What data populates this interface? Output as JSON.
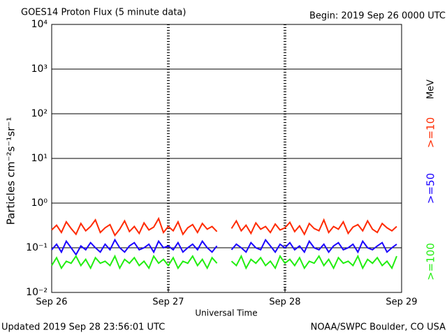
{
  "chart_data": {
    "type": "line",
    "title": "GOES14 Proton Flux (5 minute data)",
    "subtitle": "Begin: 2019 Sep 26 0000 UTC",
    "x_label": "Universal Time",
    "y_label": "Particles cm⁻²s⁻¹sr⁻¹",
    "legend_unit": "MeV",
    "footer_left": "Updated 2019 Sep 28 23:56:01 UTC",
    "footer_right": "NOAA/SWPC Boulder, CO USA",
    "ylog": true,
    "grid": true,
    "xlim": [
      0,
      72
    ],
    "xticks": [
      {
        "value": 0,
        "label": "Sep 26"
      },
      {
        "value": 24,
        "label": "Sep 27"
      },
      {
        "value": 48,
        "label": "Sep 28"
      },
      {
        "value": 72,
        "label": "Sep 29"
      }
    ],
    "ylim": [
      0.01,
      10000
    ],
    "yticks": [
      {
        "value": 0.01,
        "label": "10⁻²"
      },
      {
        "value": 0.1,
        "label": "10⁻¹"
      },
      {
        "value": 1,
        "label": "10⁰"
      },
      {
        "value": 10,
        "label": "10¹"
      },
      {
        "value": 100,
        "label": "10²"
      },
      {
        "value": 1000,
        "label": "10³"
      },
      {
        "value": 10000,
        "label": "10⁴"
      }
    ],
    "x": [
      0,
      1,
      2,
      3,
      4,
      5,
      6,
      7,
      8,
      9,
      10,
      11,
      12,
      13,
      14,
      15,
      16,
      17,
      18,
      19,
      20,
      21,
      22,
      23,
      24,
      25,
      26,
      27,
      28,
      29,
      30,
      31,
      32,
      33,
      34,
      35,
      36,
      37,
      38,
      39,
      40,
      41,
      42,
      43,
      44,
      45,
      46,
      47,
      48,
      49,
      50,
      51,
      52,
      53,
      54,
      55,
      56,
      57,
      58,
      59,
      60,
      61,
      62,
      63,
      64,
      65,
      66,
      67,
      68,
      69,
      70,
      71
    ],
    "series": [
      {
        "name": ">=10",
        "color": "#ff2a00",
        "values": [
          0.25,
          0.32,
          0.22,
          0.38,
          0.27,
          0.2,
          0.35,
          0.24,
          0.3,
          0.42,
          0.22,
          0.28,
          0.33,
          0.19,
          0.26,
          0.4,
          0.23,
          0.3,
          0.21,
          0.36,
          0.25,
          0.29,
          0.45,
          0.22,
          0.3,
          0.24,
          0.38,
          0.2,
          0.28,
          0.33,
          0.22,
          0.35,
          0.26,
          0.3,
          0.23,
          null,
          null,
          0.27,
          0.4,
          0.24,
          0.32,
          0.21,
          0.36,
          0.26,
          0.3,
          0.22,
          0.34,
          0.25,
          0.28,
          0.37,
          0.23,
          0.31,
          0.2,
          0.35,
          0.27,
          0.24,
          0.42,
          0.22,
          0.3,
          0.26,
          0.38,
          0.21,
          0.29,
          0.33,
          0.24,
          0.4,
          0.26,
          0.22,
          0.35,
          0.28,
          0.24,
          0.3
        ]
      },
      {
        "name": ">=50",
        "color": "#1a00ff",
        "values": [
          0.09,
          0.12,
          0.08,
          0.14,
          0.1,
          0.07,
          0.11,
          0.09,
          0.13,
          0.1,
          0.08,
          0.12,
          0.09,
          0.15,
          0.1,
          0.08,
          0.11,
          0.13,
          0.09,
          0.1,
          0.12,
          0.08,
          0.14,
          0.1,
          0.11,
          0.09,
          0.13,
          0.08,
          0.1,
          0.12,
          0.09,
          0.14,
          0.1,
          0.08,
          0.11,
          null,
          null,
          0.09,
          0.12,
          0.1,
          0.08,
          0.13,
          0.1,
          0.09,
          0.15,
          0.11,
          0.08,
          0.12,
          0.1,
          0.13,
          0.09,
          0.11,
          0.08,
          0.14,
          0.1,
          0.09,
          0.12,
          0.08,
          0.11,
          0.13,
          0.09,
          0.1,
          0.12,
          0.08,
          0.14,
          0.1,
          0.09,
          0.11,
          0.13,
          0.08,
          0.1,
          0.12
        ]
      },
      {
        "name": ">=100",
        "color": "#22ee11",
        "values": [
          0.04,
          0.06,
          0.035,
          0.05,
          0.045,
          0.065,
          0.04,
          0.055,
          0.035,
          0.06,
          0.045,
          0.05,
          0.04,
          0.065,
          0.035,
          0.055,
          0.045,
          0.06,
          0.04,
          0.05,
          0.035,
          0.065,
          0.045,
          0.055,
          0.04,
          0.06,
          0.035,
          0.05,
          0.045,
          0.065,
          0.04,
          0.055,
          0.035,
          0.06,
          0.045,
          null,
          null,
          0.05,
          0.04,
          0.065,
          0.035,
          0.055,
          0.045,
          0.06,
          0.04,
          0.05,
          0.035,
          0.065,
          0.045,
          0.055,
          0.04,
          0.06,
          0.035,
          0.05,
          0.045,
          0.065,
          0.04,
          0.055,
          0.035,
          0.06,
          0.045,
          0.05,
          0.04,
          0.065,
          0.035,
          0.055,
          0.045,
          0.06,
          0.04,
          0.05,
          0.035,
          0.065
        ]
      }
    ]
  }
}
